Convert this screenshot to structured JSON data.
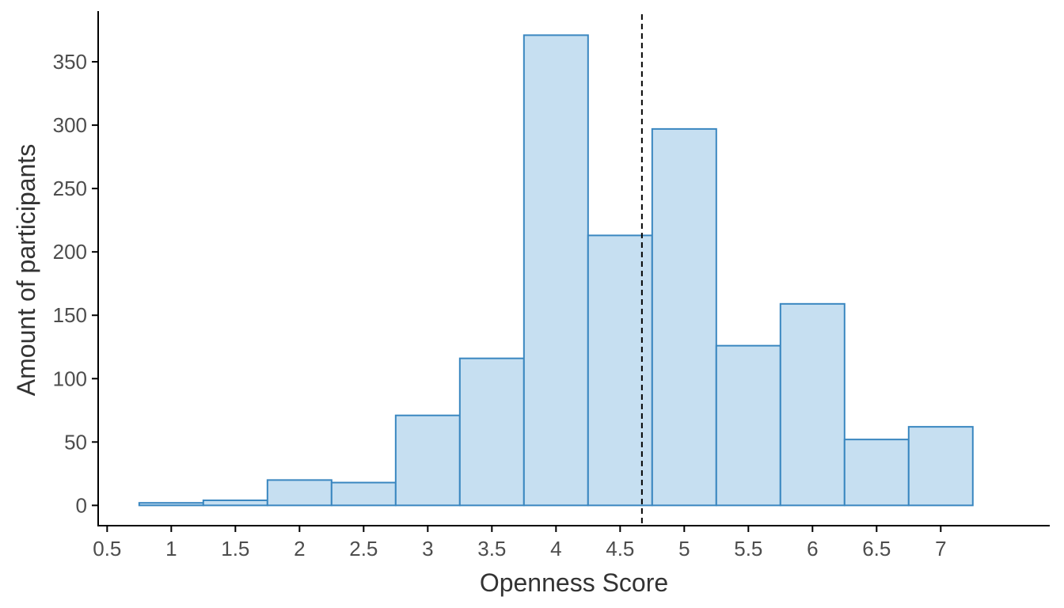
{
  "chart_data": {
    "type": "bar",
    "title": "",
    "xlabel": "Openness Score",
    "ylabel": "Amount of participants",
    "bin_width": 0.5,
    "bins": [
      {
        "x": 1.0,
        "count": 2
      },
      {
        "x": 1.5,
        "count": 4
      },
      {
        "x": 2.0,
        "count": 20
      },
      {
        "x": 2.5,
        "count": 18
      },
      {
        "x": 3.0,
        "count": 71
      },
      {
        "x": 3.5,
        "count": 116
      },
      {
        "x": 4.0,
        "count": 371
      },
      {
        "x": 4.5,
        "count": 213
      },
      {
        "x": 5.0,
        "count": 297
      },
      {
        "x": 5.5,
        "count": 126
      },
      {
        "x": 6.0,
        "count": 159
      },
      {
        "x": 6.5,
        "count": 52
      },
      {
        "x": 7.0,
        "count": 62
      }
    ],
    "mean_line": {
      "x": 4.67,
      "style": "dashed"
    },
    "xlim": [
      0.43,
      7.85
    ],
    "ylim": [
      -16,
      390
    ],
    "x_ticks": [
      0.5,
      1,
      1.5,
      2,
      2.5,
      3,
      3.5,
      4,
      4.5,
      5,
      5.5,
      6,
      6.5,
      7
    ],
    "y_ticks": [
      0,
      50,
      100,
      150,
      200,
      250,
      300,
      350
    ],
    "grid": false,
    "colors": {
      "fill": "#c6dff1",
      "stroke": "#3a87c0",
      "mean_line": "#000000",
      "axis": "#000000"
    }
  }
}
